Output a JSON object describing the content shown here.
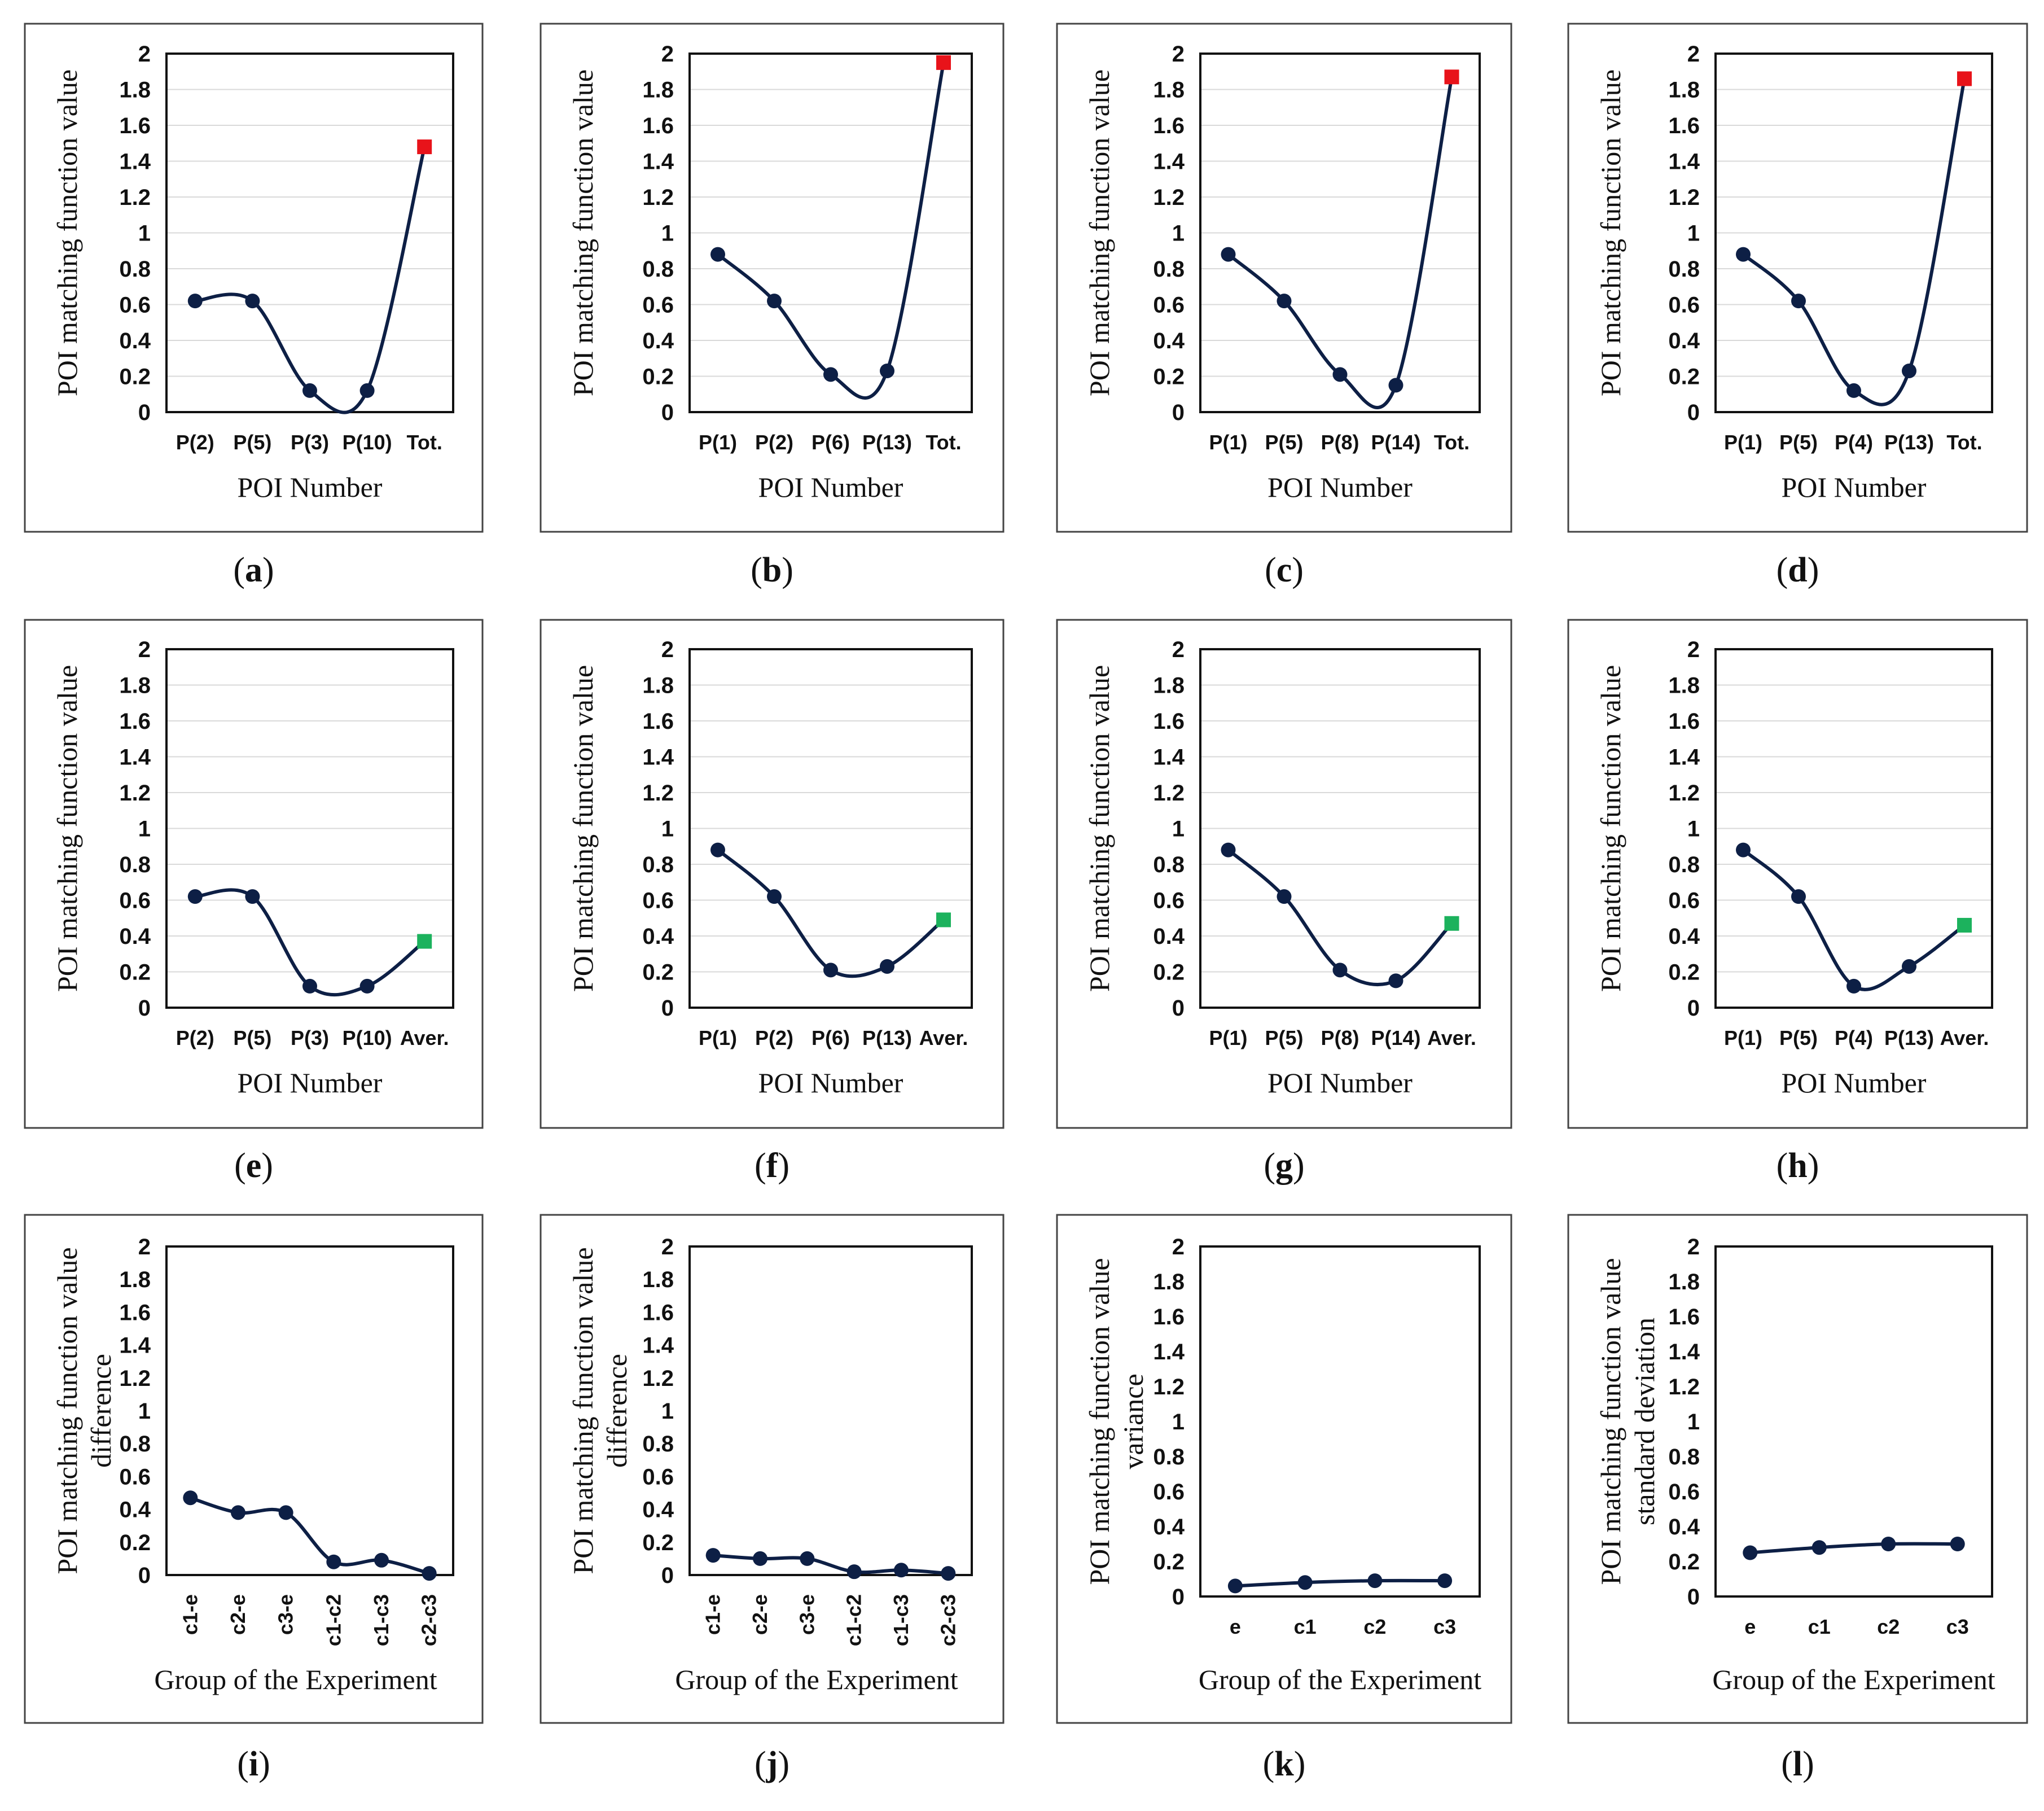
{
  "page": {
    "background": "#ffffff"
  },
  "styles": {
    "series_color": "#0d1f45",
    "total_marker_color": "#e8131a",
    "average_marker_color": "#1cb25d",
    "gridline_color": "#d9d9d9"
  },
  "chart_data": [
    {
      "id": "a",
      "type": "line",
      "caption": {
        "letter": "a"
      },
      "ylabel": [
        "POI matching function value"
      ],
      "xlabel": "POI Number",
      "ylim": [
        0,
        2
      ],
      "yticks": [
        "0",
        "0.2",
        "0.4",
        "0.6",
        "0.8",
        "1",
        "1.2",
        "1.4",
        "1.6",
        "1.8",
        "2"
      ],
      "categories": [
        "P(2)",
        "P(5)",
        "P(3)",
        "P(10)",
        "Tot."
      ],
      "values": [
        0.62,
        0.62,
        0.12,
        0.12,
        1.48
      ],
      "marker_last": "total",
      "grid": true,
      "rotated_ticks": false
    },
    {
      "id": "b",
      "type": "line",
      "caption": {
        "letter": "b"
      },
      "ylabel": [
        "POI matching function value"
      ],
      "xlabel": "POI Number",
      "ylim": [
        0,
        2
      ],
      "yticks": [
        "0",
        "0.2",
        "0.4",
        "0.6",
        "0.8",
        "1",
        "1.2",
        "1.4",
        "1.6",
        "1.8",
        "2"
      ],
      "categories": [
        "P(1)",
        "P(2)",
        "P(6)",
        "P(13)",
        "Tot."
      ],
      "values": [
        0.88,
        0.62,
        0.21,
        0.23,
        1.95
      ],
      "marker_last": "total",
      "grid": true,
      "rotated_ticks": false
    },
    {
      "id": "c",
      "type": "line",
      "caption": {
        "letter": "c"
      },
      "ylabel": [
        "POI matching function value"
      ],
      "xlabel": "POI Number",
      "ylim": [
        0,
        2
      ],
      "yticks": [
        "0",
        "0.2",
        "0.4",
        "0.6",
        "0.8",
        "1",
        "1.2",
        "1.4",
        "1.6",
        "1.8",
        "2"
      ],
      "categories": [
        "P(1)",
        "P(5)",
        "P(8)",
        "P(14)",
        "Tot."
      ],
      "values": [
        0.88,
        0.62,
        0.21,
        0.15,
        1.87
      ],
      "marker_last": "total",
      "grid": true,
      "rotated_ticks": false
    },
    {
      "id": "d",
      "type": "line",
      "caption": {
        "letter": "d"
      },
      "ylabel": [
        "POI matching function value"
      ],
      "xlabel": "POI Number",
      "ylim": [
        0,
        2
      ],
      "yticks": [
        "0",
        "0.2",
        "0.4",
        "0.6",
        "0.8",
        "1",
        "1.2",
        "1.4",
        "1.6",
        "1.8",
        "2"
      ],
      "categories": [
        "P(1)",
        "P(5)",
        "P(4)",
        "P(13)",
        "Tot."
      ],
      "values": [
        0.88,
        0.62,
        0.12,
        0.23,
        1.86
      ],
      "marker_last": "total",
      "grid": true,
      "rotated_ticks": false
    },
    {
      "id": "e",
      "type": "line",
      "caption": {
        "letter": "e"
      },
      "ylabel": [
        "POI matching function value"
      ],
      "xlabel": "POI Number",
      "ylim": [
        0,
        2
      ],
      "yticks": [
        "0",
        "0.2",
        "0.4",
        "0.6",
        "0.8",
        "1",
        "1.2",
        "1.4",
        "1.6",
        "1.8",
        "2"
      ],
      "categories": [
        "P(2)",
        "P(5)",
        "P(3)",
        "P(10)",
        "Aver."
      ],
      "values": [
        0.62,
        0.62,
        0.12,
        0.12,
        0.37
      ],
      "marker_last": "average",
      "grid": true,
      "rotated_ticks": false
    },
    {
      "id": "f",
      "type": "line",
      "caption": {
        "letter": "f"
      },
      "ylabel": [
        "POI matching function value"
      ],
      "xlabel": "POI Number",
      "ylim": [
        0,
        2
      ],
      "yticks": [
        "0",
        "0.2",
        "0.4",
        "0.6",
        "0.8",
        "1",
        "1.2",
        "1.4",
        "1.6",
        "1.8",
        "2"
      ],
      "categories": [
        "P(1)",
        "P(2)",
        "P(6)",
        "P(13)",
        "Aver."
      ],
      "values": [
        0.88,
        0.62,
        0.21,
        0.23,
        0.49
      ],
      "marker_last": "average",
      "grid": true,
      "rotated_ticks": false
    },
    {
      "id": "g",
      "type": "line",
      "caption": {
        "letter": "g"
      },
      "ylabel": [
        "POI matching function value"
      ],
      "xlabel": "POI Number",
      "ylim": [
        0,
        2
      ],
      "yticks": [
        "0",
        "0.2",
        "0.4",
        "0.6",
        "0.8",
        "1",
        "1.2",
        "1.4",
        "1.6",
        "1.8",
        "2"
      ],
      "categories": [
        "P(1)",
        "P(5)",
        "P(8)",
        "P(14)",
        "Aver."
      ],
      "values": [
        0.88,
        0.62,
        0.21,
        0.15,
        0.47
      ],
      "marker_last": "average",
      "grid": true,
      "rotated_ticks": false
    },
    {
      "id": "h",
      "type": "line",
      "caption": {
        "letter": "h"
      },
      "ylabel": [
        "POI matching function value"
      ],
      "xlabel": "POI Number",
      "ylim": [
        0,
        2
      ],
      "yticks": [
        "0",
        "0.2",
        "0.4",
        "0.6",
        "0.8",
        "1",
        "1.2",
        "1.4",
        "1.6",
        "1.8",
        "2"
      ],
      "categories": [
        "P(1)",
        "P(5)",
        "P(4)",
        "P(13)",
        "Aver."
      ],
      "values": [
        0.88,
        0.62,
        0.12,
        0.23,
        0.46
      ],
      "marker_last": "average",
      "grid": true,
      "rotated_ticks": false
    },
    {
      "id": "i",
      "type": "line",
      "caption": {
        "letter": "i"
      },
      "ylabel": [
        "POI matching function value",
        "difference"
      ],
      "xlabel": "Group of the Experiment",
      "ylim": [
        0,
        2
      ],
      "yticks": [
        "0",
        "0.2",
        "0.4",
        "0.6",
        "0.8",
        "1",
        "1.2",
        "1.4",
        "1.6",
        "1.8",
        "2"
      ],
      "categories": [
        "c1-e",
        "c2-e",
        "c3-e",
        "c1-c2",
        "c1-c3",
        "c2-c3"
      ],
      "values": [
        0.47,
        0.38,
        0.38,
        0.08,
        0.09,
        0.01
      ],
      "marker_last": "none",
      "grid": false,
      "rotated_ticks": true
    },
    {
      "id": "j",
      "type": "line",
      "caption": {
        "letter": "j"
      },
      "ylabel": [
        "POI matching function value",
        "difference"
      ],
      "xlabel": "Group of the Experiment",
      "ylim": [
        0,
        2
      ],
      "yticks": [
        "0",
        "0.2",
        "0.4",
        "0.6",
        "0.8",
        "1",
        "1.2",
        "1.4",
        "1.6",
        "1.8",
        "2"
      ],
      "categories": [
        "c1-e",
        "c2-e",
        "c3-e",
        "c1-c2",
        "c1-c3",
        "c2-c3"
      ],
      "values": [
        0.12,
        0.1,
        0.1,
        0.02,
        0.03,
        0.01
      ],
      "marker_last": "none",
      "grid": false,
      "rotated_ticks": true
    },
    {
      "id": "k",
      "type": "line",
      "caption": {
        "letter": "k"
      },
      "ylabel": [
        "POI matching function value",
        "variance"
      ],
      "xlabel": "Group of the Experiment",
      "ylim": [
        0,
        2
      ],
      "yticks": [
        "0",
        "0.2",
        "0.4",
        "0.6",
        "0.8",
        "1",
        "1.2",
        "1.4",
        "1.6",
        "1.8",
        "2"
      ],
      "categories": [
        "e",
        "c1",
        "c2",
        "c3"
      ],
      "values": [
        0.06,
        0.08,
        0.09,
        0.09
      ],
      "marker_last": "none",
      "grid": false,
      "rotated_ticks": false
    },
    {
      "id": "l",
      "type": "line",
      "caption": {
        "letter": "l"
      },
      "ylabel": [
        "POI matching function value",
        "standard deviation"
      ],
      "xlabel": "Group of the Experiment",
      "ylim": [
        0,
        2
      ],
      "yticks": [
        "0",
        "0.2",
        "0.4",
        "0.6",
        "0.8",
        "1",
        "1.2",
        "1.4",
        "1.6",
        "1.8",
        "2"
      ],
      "categories": [
        "e",
        "c1",
        "c2",
        "c3"
      ],
      "values": [
        0.25,
        0.28,
        0.3,
        0.3
      ],
      "marker_last": "none",
      "grid": false,
      "rotated_ticks": false
    }
  ]
}
